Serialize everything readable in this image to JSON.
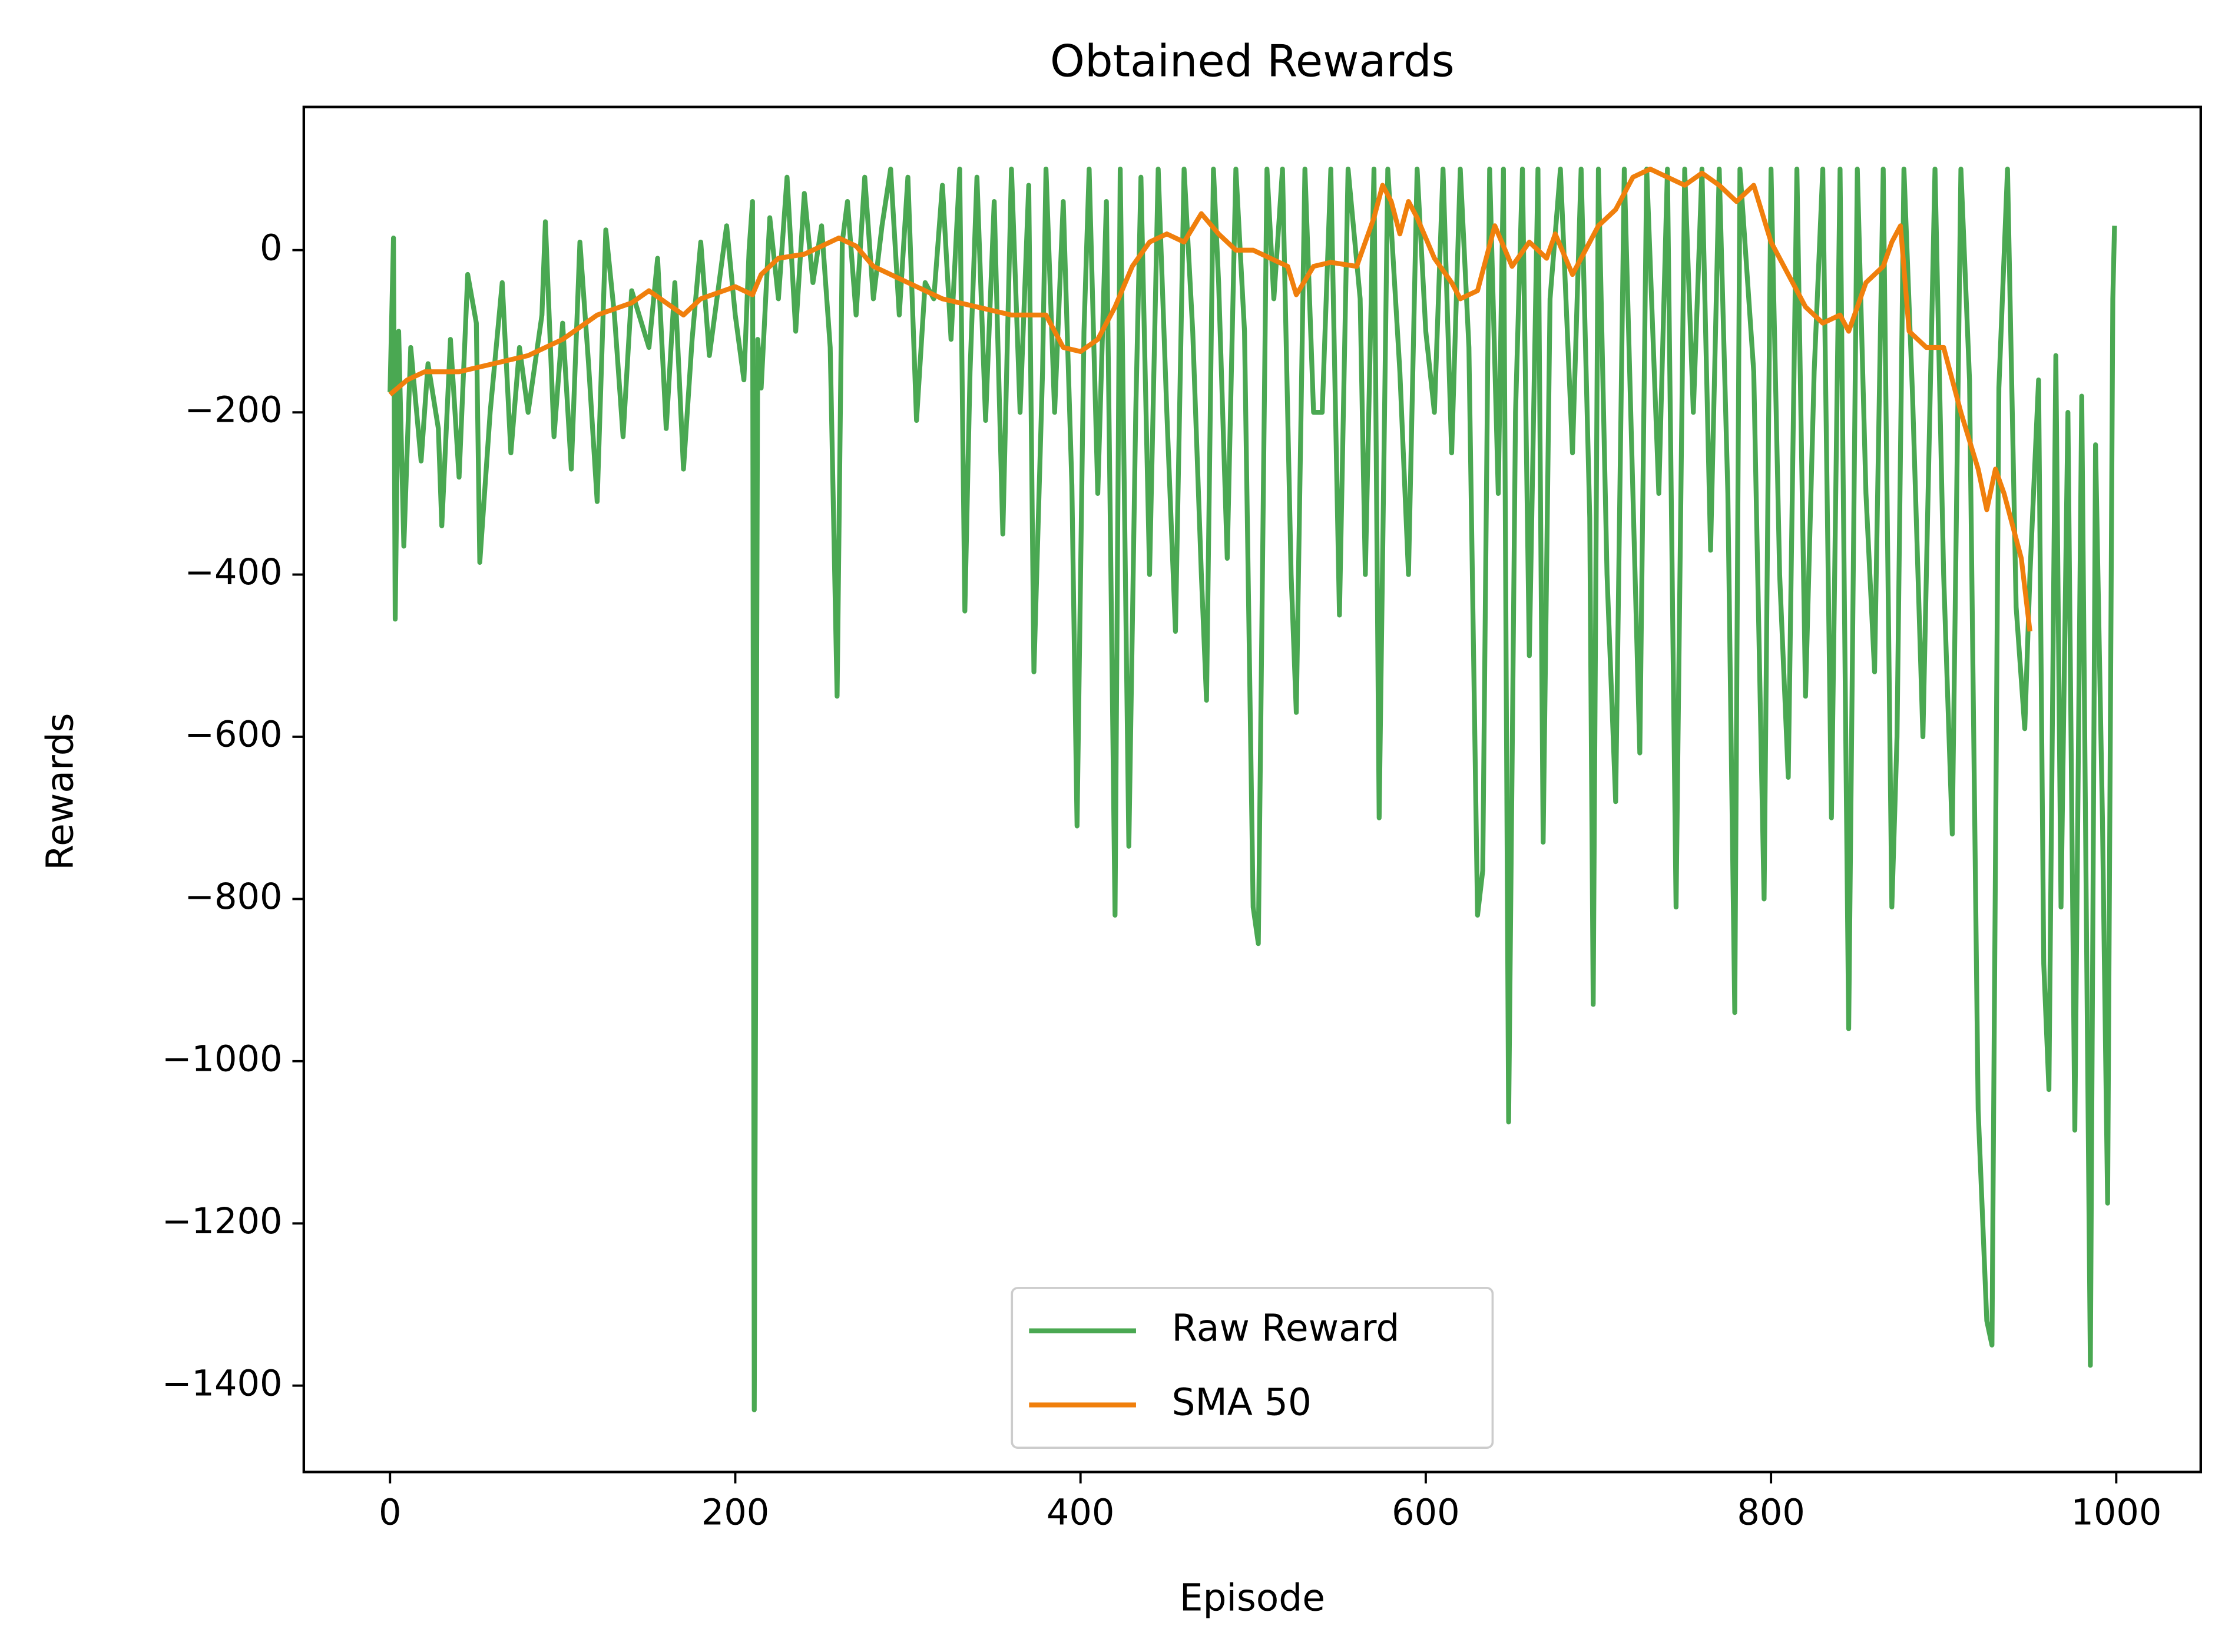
{
  "chart_data": {
    "type": "line",
    "title": "Obtained Rewards",
    "x_label": "Episode",
    "y_label": "Rewards",
    "xlim": [
      -49.95,
      1048.95
    ],
    "ylim": [
      -1506.5,
      176.5
    ],
    "xticks": [
      0,
      200,
      400,
      600,
      800,
      1000
    ],
    "yticks": [
      {
        "value": -1400,
        "label": "−1400"
      },
      {
        "value": -1200,
        "label": "−1200"
      },
      {
        "value": -1000,
        "label": "−1000"
      },
      {
        "value": -800,
        "label": "−800"
      },
      {
        "value": -600,
        "label": "−600"
      },
      {
        "value": -400,
        "label": "−400"
      },
      {
        "value": -200,
        "label": "−200"
      },
      0
    ],
    "grid": false,
    "legend": "lower center",
    "series": [
      {
        "name": "Raw Reward",
        "color": "#4aa852",
        "x": [
          0,
          2,
          3,
          5,
          8,
          12,
          18,
          22,
          28,
          30,
          35,
          40,
          45,
          50,
          52,
          58,
          65,
          70,
          75,
          80,
          88,
          90,
          95,
          100,
          105,
          110,
          115,
          120,
          125,
          130,
          135,
          140,
          150,
          155,
          160,
          165,
          170,
          175,
          180,
          185,
          190,
          195,
          200,
          205,
          208,
          210,
          211,
          213,
          215,
          220,
          225,
          230,
          235,
          240,
          245,
          250,
          255,
          259,
          262,
          265,
          270,
          275,
          280,
          285,
          290,
          295,
          300,
          305,
          310,
          315,
          320,
          325,
          330,
          333,
          336,
          340,
          345,
          350,
          355,
          360,
          365,
          370,
          373,
          378,
          380,
          385,
          390,
          395,
          398,
          402,
          405,
          410,
          415,
          420,
          423,
          428,
          432,
          435,
          440,
          445,
          450,
          455,
          460,
          465,
          470,
          473,
          477,
          480,
          485,
          490,
          495,
          500,
          503,
          508,
          512,
          517,
          522,
          525,
          530,
          535,
          540,
          545,
          550,
          555,
          562,
          565,
          570,
          573,
          578,
          585,
          590,
          595,
          600,
          605,
          610,
          615,
          620,
          625,
          630,
          633,
          637,
          642,
          645,
          648,
          652,
          656,
          660,
          665,
          668,
          672,
          678,
          685,
          690,
          695,
          697,
          700,
          705,
          710,
          715,
          720,
          724,
          728,
          735,
          740,
          745,
          750,
          755,
          760,
          765,
          770,
          775,
          779,
          782,
          790,
          796,
          800,
          805,
          810,
          815,
          820,
          825,
          830,
          835,
          840,
          845,
          850,
          855,
          860,
          865,
          870,
          873,
          877,
          882,
          888,
          895,
          900,
          905,
          910,
          915,
          920,
          925,
          928,
          932,
          937,
          942,
          947,
          950,
          955,
          958,
          961,
          965,
          968,
          972,
          976,
          980,
          985,
          988,
          992,
          995,
          998,
          999
        ],
        "values": [
          -175,
          15,
          -455,
          -100,
          -365,
          -120,
          -260,
          -140,
          -220,
          -340,
          -110,
          -280,
          -30,
          -90,
          -385,
          -200,
          -40,
          -250,
          -120,
          -200,
          -80,
          35,
          -230,
          -90,
          -270,
          10,
          -140,
          -310,
          25,
          -80,
          -230,
          -50,
          -120,
          -10,
          -220,
          -40,
          -270,
          -110,
          10,
          -130,
          -50,
          30,
          -80,
          -160,
          0,
          60,
          -1430,
          -110,
          -170,
          40,
          -60,
          90,
          -100,
          70,
          -40,
          30,
          -120,
          -550,
          10,
          60,
          -80,
          90,
          -60,
          30,
          100,
          -80,
          90,
          -210,
          -40,
          -60,
          80,
          -110,
          100,
          -445,
          -150,
          90,
          -210,
          60,
          -350,
          100,
          -200,
          80,
          -520,
          -150,
          100,
          -200,
          60,
          -290,
          -710,
          -100,
          100,
          -300,
          60,
          -820,
          100,
          -735,
          -200,
          90,
          -400,
          100,
          -200,
          -470,
          100,
          -100,
          -400,
          -555,
          100,
          -40,
          -380,
          100,
          -100,
          -810,
          -855,
          100,
          -60,
          100,
          -400,
          -570,
          100,
          -200,
          -200,
          100,
          -450,
          100,
          -60,
          -400,
          100,
          -700,
          100,
          -150,
          -400,
          100,
          -100,
          -200,
          100,
          -250,
          100,
          -120,
          -820,
          -765,
          100,
          -300,
          100,
          -1075,
          -200,
          100,
          -500,
          100,
          -730,
          -60,
          100,
          -250,
          100,
          -330,
          -930,
          100,
          -400,
          -680,
          100,
          -300,
          -620,
          100,
          -300,
          100,
          -810,
          100,
          -200,
          100,
          -370,
          100,
          -300,
          -940,
          100,
          -150,
          -800,
          100,
          -400,
          -650,
          100,
          -550,
          -150,
          100,
          -700,
          100,
          -960,
          100,
          -300,
          -520,
          100,
          -810,
          -600,
          100,
          -180,
          -600,
          100,
          -400,
          -720,
          100,
          -160,
          -1060,
          -1320,
          -1350,
          -170,
          100,
          -440,
          -590,
          -400,
          -160,
          -880,
          -1035,
          -130,
          -810,
          -200,
          -1085,
          -180,
          -1375,
          -240,
          -700,
          -1175,
          -60,
          30
        ]
      },
      {
        "name": "SMA 50",
        "color": "#f07f0c",
        "x": [
          0,
          10,
          20,
          40,
          60,
          80,
          100,
          120,
          140,
          150,
          160,
          170,
          180,
          200,
          210,
          215,
          225,
          240,
          260,
          270,
          280,
          300,
          320,
          340,
          360,
          380,
          390,
          400,
          410,
          420,
          430,
          440,
          450,
          460,
          470,
          480,
          490,
          500,
          510,
          520,
          525,
          535,
          545,
          560,
          570,
          575,
          580,
          585,
          590,
          595,
          605,
          615,
          620,
          630,
          640,
          650,
          660,
          670,
          675,
          685,
          700,
          710,
          720,
          730,
          740,
          750,
          760,
          770,
          780,
          790,
          800,
          810,
          820,
          830,
          840,
          845,
          855,
          865,
          870,
          875,
          880,
          890,
          900,
          910,
          920,
          925,
          930,
          935,
          945,
          950
        ],
        "values": [
          -178,
          -160,
          -150,
          -150,
          -140,
          -130,
          -110,
          -80,
          -65,
          -50,
          -65,
          -80,
          -60,
          -45,
          -55,
          -30,
          -10,
          -5,
          15,
          5,
          -20,
          -40,
          -60,
          -70,
          -80,
          -80,
          -120,
          -125,
          -110,
          -70,
          -20,
          10,
          20,
          10,
          45,
          20,
          0,
          0,
          -10,
          -20,
          -55,
          -20,
          -15,
          -20,
          40,
          80,
          60,
          20,
          60,
          40,
          -10,
          -40,
          -60,
          -50,
          30,
          -20,
          10,
          -10,
          20,
          -30,
          30,
          50,
          90,
          100,
          90,
          80,
          95,
          80,
          60,
          80,
          10,
          -30,
          -70,
          -90,
          -80,
          -100,
          -40,
          -20,
          10,
          30,
          -100,
          -120,
          -120,
          -200,
          -270,
          -320,
          -270,
          -300,
          -380,
          -470
        ]
      }
    ]
  }
}
